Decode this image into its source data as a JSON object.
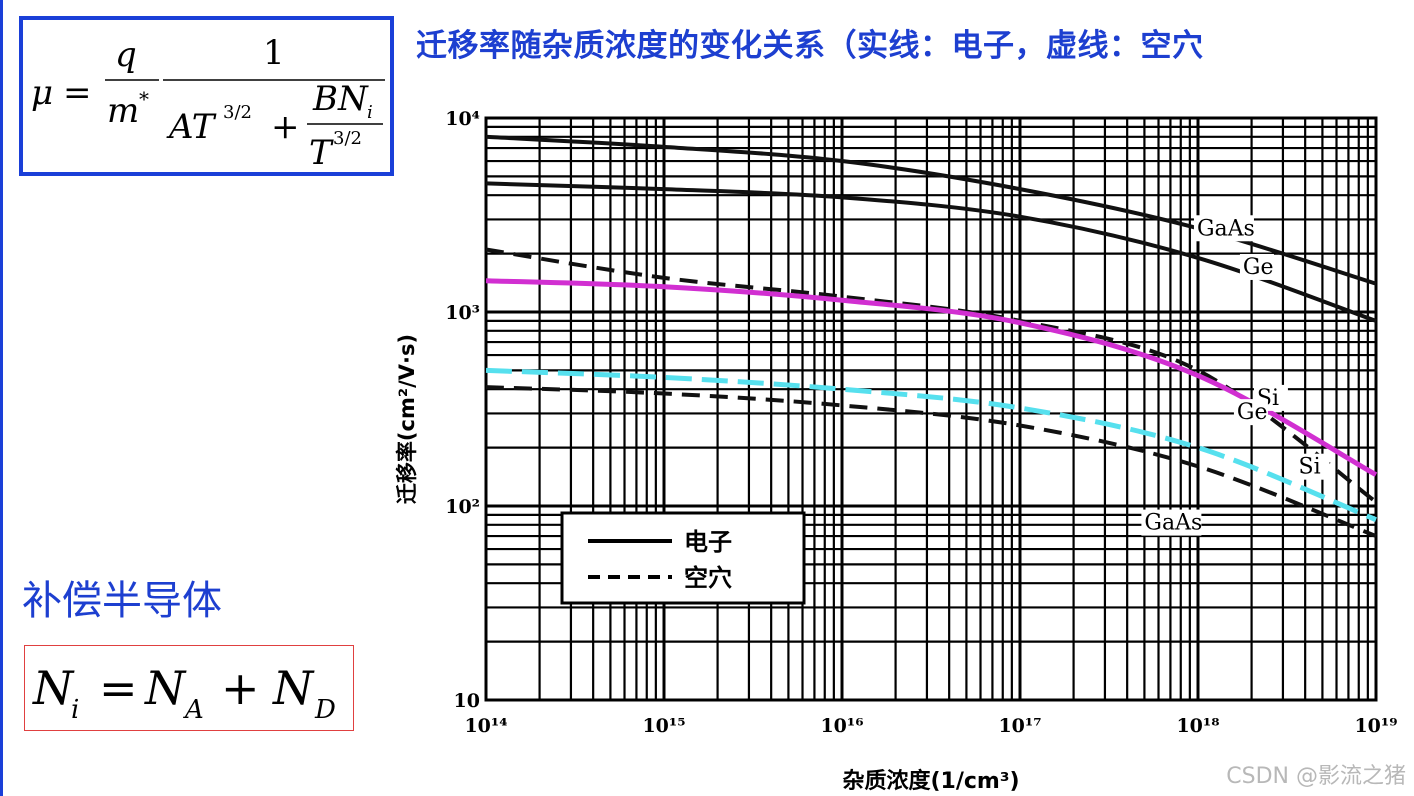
{
  "slide": {
    "title": "迁移率随杂质浓度的变化关系（实线：电子，虚线：空穴",
    "compensation_label": "补偿半导体",
    "watermark": "CSDN @影流之猪"
  },
  "formula_mu": {
    "lhs": "μ",
    "eq": "=",
    "q": "q",
    "m": "m",
    "star": "*",
    "one": "1",
    "AT": "AT",
    "exp": "3/2",
    "plus": "+",
    "BN": "BN",
    "i": "i",
    "T": "T"
  },
  "formula_ni": {
    "Ni": "N",
    "i": "i",
    "eq": "=",
    "NA": "N",
    "A": "A",
    "plus": "+",
    "ND": "N",
    "D": "D"
  },
  "colors": {
    "slide_blue": "#1d3fd0",
    "highlight_magenta": "#d12fd1",
    "highlight_cyan": "#56e0ee",
    "grid": "#000000"
  },
  "chart_data": {
    "type": "line",
    "xscale": "log",
    "yscale": "log",
    "xlim": [
      100000000000000.0,
      1e+19
    ],
    "ylim": [
      10,
      10000
    ],
    "xlabel": "杂质浓度(1/cm³)",
    "ylabel": "迁移率(cm²/V·s)",
    "xticks": [
      "10¹⁴",
      "10¹⁵",
      "10¹⁶",
      "10¹⁷",
      "10¹⁸",
      "10¹⁹"
    ],
    "yticks": [
      "10",
      "10²",
      "10³",
      "10⁴"
    ],
    "grid": true,
    "legend": {
      "placement": "inside-left-lower",
      "entries": [
        {
          "label": "电子",
          "style": "solid"
        },
        {
          "label": "空穴",
          "style": "dashed"
        }
      ]
    },
    "series": [
      {
        "label": "GaAs",
        "carrier": "electron",
        "style": "solid",
        "color": "#111111",
        "x": [
          100000000000000.0,
          1000000000000000.0,
          1e+16,
          1e+17,
          1e+18,
          1e+19
        ],
        "y": [
          8000,
          7100,
          6000,
          4300,
          2700,
          1400
        ]
      },
      {
        "label": "Ge",
        "carrier": "electron",
        "style": "solid",
        "color": "#111111",
        "x": [
          100000000000000.0,
          1000000000000000.0,
          1e+16,
          1e+17,
          1e+18,
          1e+19
        ],
        "y": [
          4600,
          4300,
          3900,
          3100,
          1900,
          900
        ]
      },
      {
        "label": "Si",
        "carrier": "electron",
        "style": "solid",
        "color": "#d12fd1",
        "highlight": true,
        "x": [
          100000000000000.0,
          1000000000000000.0,
          1e+16,
          1e+17,
          1e+18,
          1e+19
        ],
        "y": [
          1450,
          1350,
          1150,
          880,
          470,
          145
        ]
      },
      {
        "label": "Ge",
        "carrier": "hole",
        "style": "dashed",
        "color": "#111111",
        "x": [
          100000000000000.0,
          1000000000000000.0,
          1e+16,
          1e+17,
          1e+18,
          1e+19
        ],
        "y": [
          2100,
          1500,
          1200,
          900,
          500,
          105
        ]
      },
      {
        "label": "Si",
        "carrier": "hole",
        "style": "dashed",
        "color": "#56e0ee",
        "highlight": true,
        "x": [
          100000000000000.0,
          1000000000000000.0,
          1e+16,
          1e+17,
          1e+18,
          1e+19
        ],
        "y": [
          500,
          460,
          400,
          320,
          200,
          85
        ]
      },
      {
        "label": "GaAs",
        "carrier": "hole",
        "style": "dashed",
        "color": "#111111",
        "x": [
          100000000000000.0,
          1000000000000000.0,
          1e+16,
          1e+17,
          1e+18,
          1e+19
        ],
        "y": [
          410,
          380,
          330,
          260,
          160,
          70
        ]
      }
    ]
  }
}
